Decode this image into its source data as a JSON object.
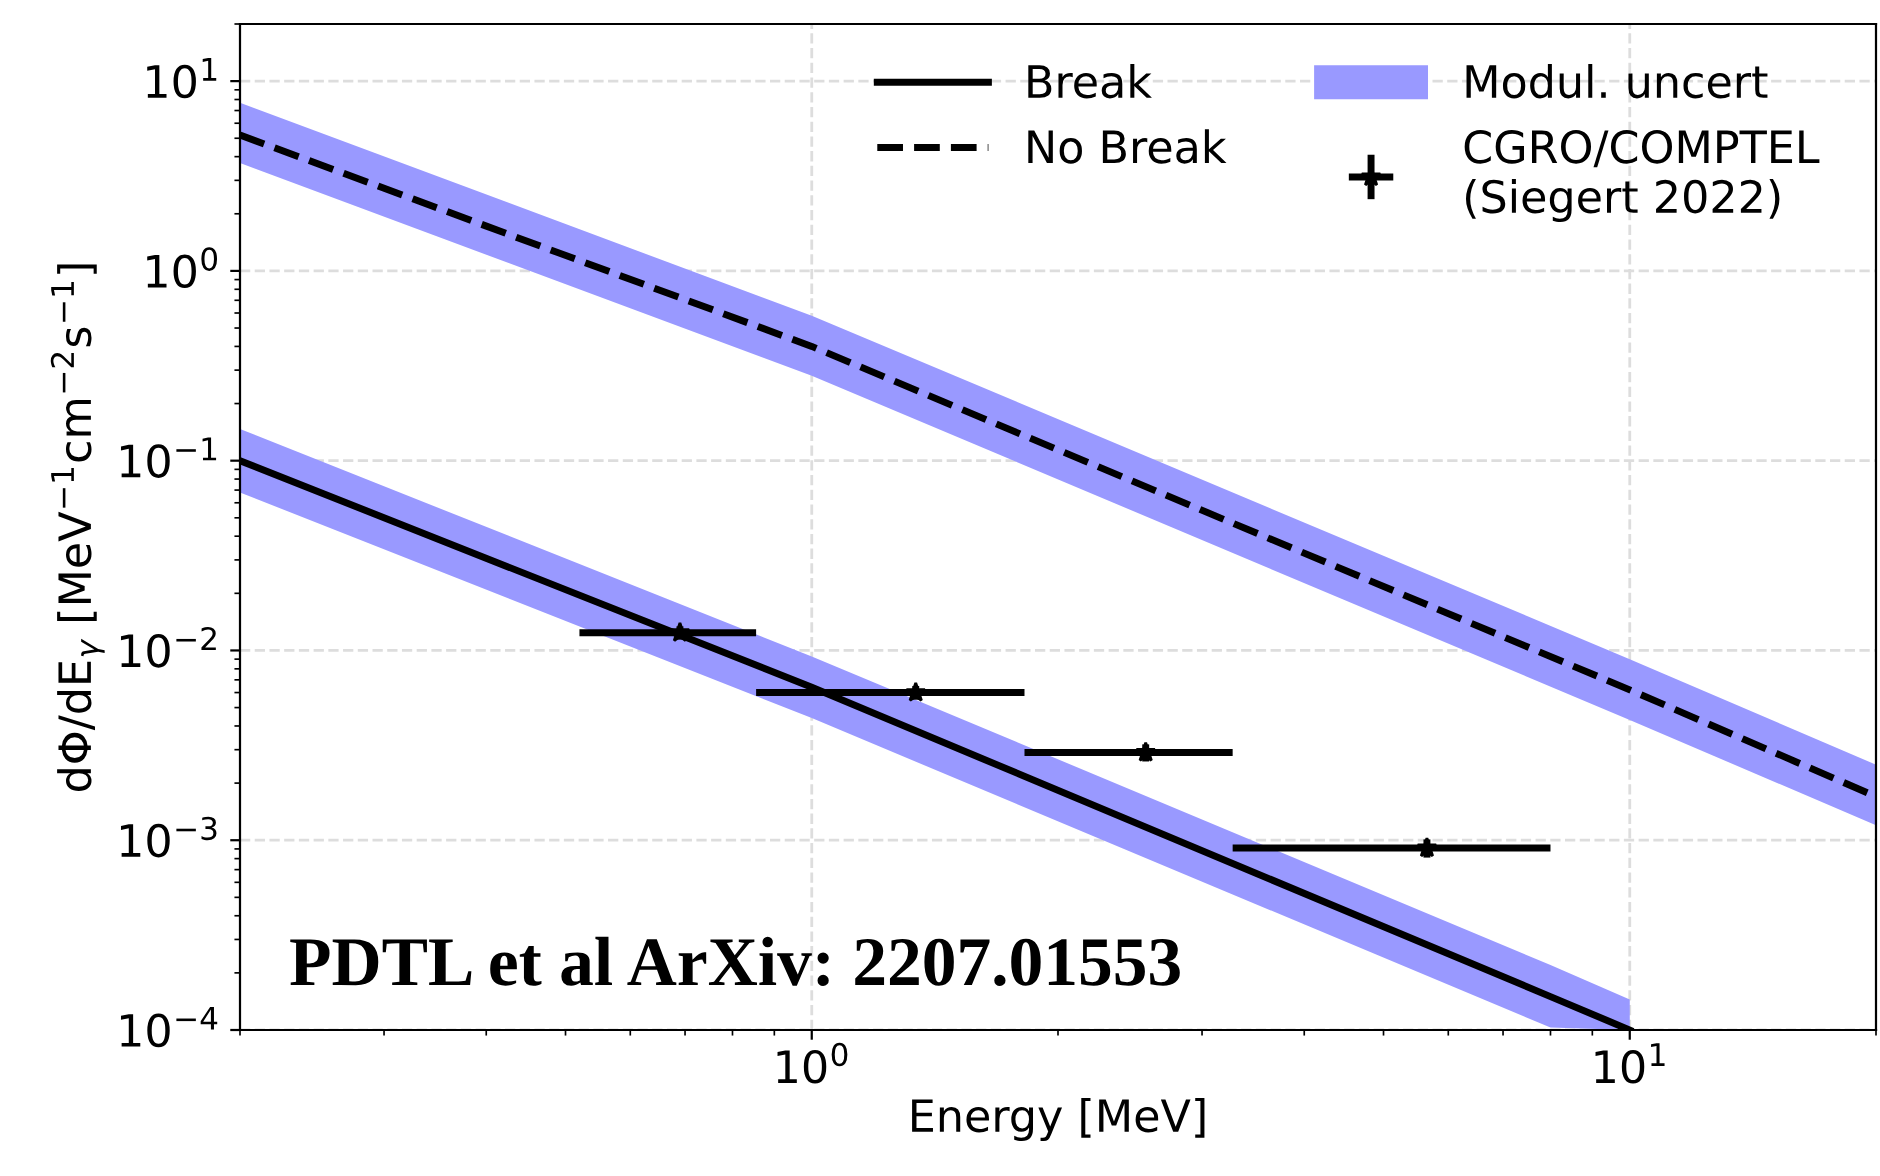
{
  "chart_data": {
    "type": "line",
    "xlabel": "Energy [MeV]",
    "ylabel": "dΦ/dE$_{γ}$ [MeV$^{−1}$cm$^{−2}$s$^{−1}$]",
    "log": "xy",
    "grid": true,
    "legend": "top right",
    "xlim": [
      0.2,
      20
    ],
    "xticks": [
      {
        "value": 1,
        "label": "10$^{0}$"
      },
      {
        "value": 10,
        "label": "10$^{1}$"
      }
    ],
    "ylim": [
      0.0001,
      20
    ],
    "yticks": [
      {
        "value": 0.0001,
        "label": "10$^{−4}$"
      },
      {
        "value": 0.001,
        "label": "10$^{−3}$"
      },
      {
        "value": 0.01,
        "label": "10$^{−2}$"
      },
      {
        "value": 0.1,
        "label": "10$^{−1}$"
      },
      {
        "value": 1,
        "label": "10$^{0}$"
      },
      {
        "value": 10,
        "label": "10$^{1}$"
      }
    ],
    "series": [
      {
        "name": "Break",
        "color": "#000000",
        "line_style": "solid",
        "x": [
          0.2,
          1,
          8,
          10
        ],
        "values": [
          0.1,
          0.0064,
          0.00015,
          0.0001
        ],
        "lower": [
          0.068,
          0.0044,
          0.000103,
          0.0001
        ],
        "upper": [
          0.147,
          0.0093,
          0.00022,
          0.000145
        ]
      },
      {
        "name": "No Break",
        "color": "#000000",
        "line_style": "dashed",
        "x": [
          0.2,
          1,
          10,
          20
        ],
        "values": [
          5.2,
          0.4,
          0.0062,
          0.0017
        ],
        "lower": [
          3.7,
          0.28,
          0.0043,
          0.0012
        ],
        "upper": [
          7.7,
          0.58,
          0.009,
          0.0025
        ]
      },
      {
        "name": "Modul. uncert",
        "type": "area",
        "color": "#9999ff"
      },
      {
        "name": "CGRO/COMPTEL\n(Siegert 2022)",
        "type": "scatter",
        "color": "#000000",
        "marker": "star",
        "x": [
          0.69,
          1.34,
          2.56,
          5.65
        ],
        "values": [
          0.0124,
          0.006,
          0.0029,
          0.00091
        ],
        "errors": [
          0.001,
          0.0005,
          0.0003,
          0.0001
        ],
        "xerrors": [
          [
            0.52,
            0.855
          ],
          [
            0.855,
            1.82
          ],
          [
            1.82,
            3.27
          ],
          [
            3.27,
            8.0
          ]
        ]
      }
    ],
    "annotations": [
      "PDTL et al ArXiv: 2207.01553"
    ]
  }
}
